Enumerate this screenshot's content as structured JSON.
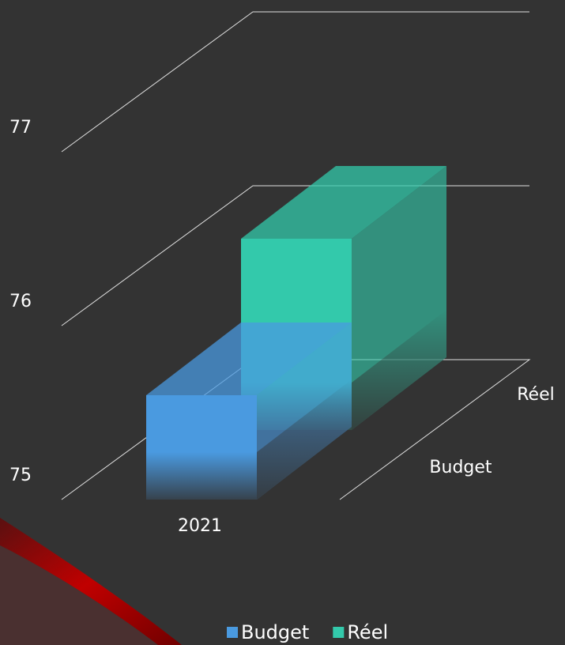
{
  "chart_data": {
    "type": "bar3d",
    "categories": [
      "2021"
    ],
    "series": [
      {
        "name": "Budget",
        "color": "#4a9ae0",
        "values": [
          75.6
        ]
      },
      {
        "name": "Réel",
        "color": "#33c9ab",
        "values": [
          76.1
        ]
      }
    ],
    "ylim": [
      75,
      77
    ],
    "yticks": [
      75,
      76,
      77
    ],
    "grid": true,
    "legend": "bottom"
  }
}
